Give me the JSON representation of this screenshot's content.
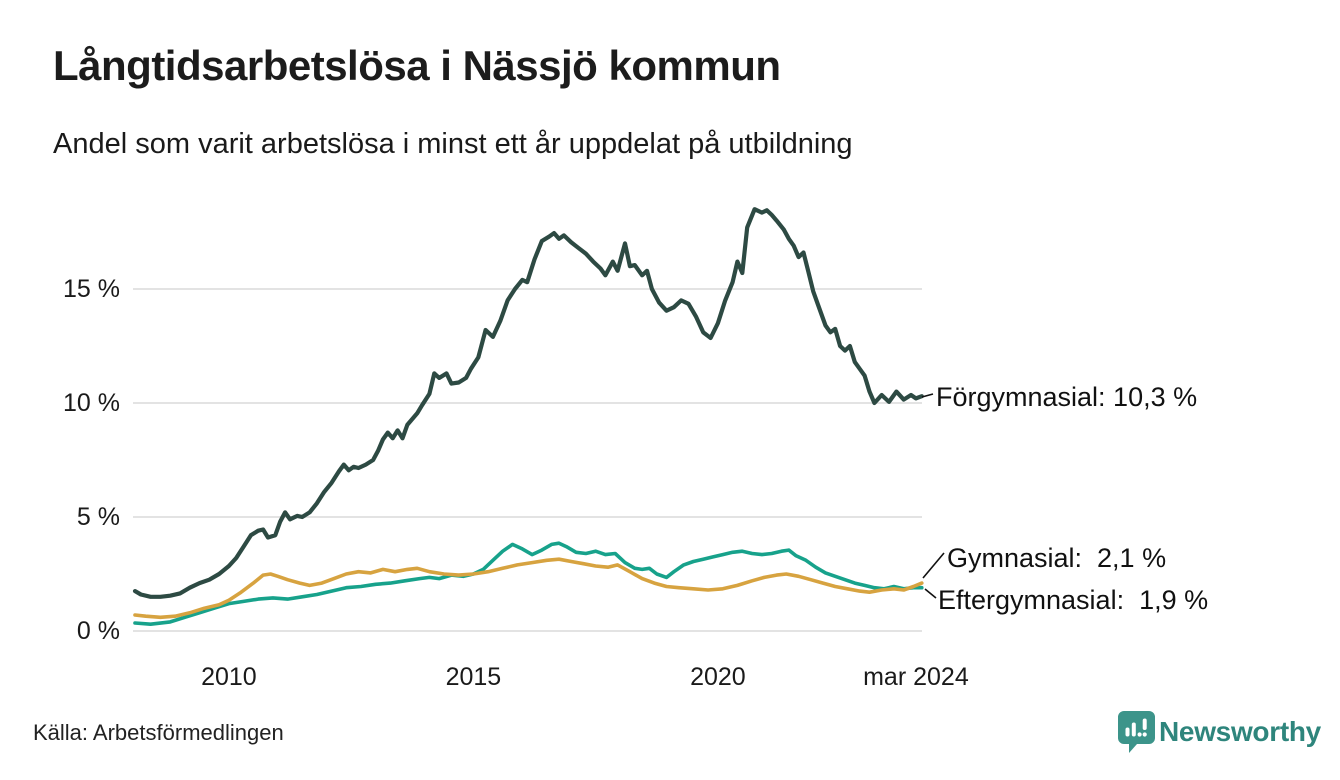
{
  "header": {
    "title": "Långtidsarbetslösa i Nässjö kommun",
    "subtitle": "Andel som varit arbetslösa i minst ett år uppdelat på utbildning"
  },
  "footer": {
    "source": "Källa: Arbetsförmedlingen",
    "brand": "Newsworthy"
  },
  "colors": {
    "forgymnasial": "#2d4a43",
    "gymnasial": "#d7a340",
    "eftergymnasial": "#17a28b",
    "grid": "#e3e3e3",
    "brand_teal": "#3c948a"
  },
  "chart_data": {
    "type": "line",
    "title": "Långtidsarbetslösa i Nässjö kommun",
    "subtitle": "Andel som varit arbetslösa i minst ett år uppdelat på utbildning",
    "unit": "%",
    "grid": "horizontal",
    "x_axis": {
      "range": [
        2008.08,
        2024.17
      ],
      "ticks": [
        {
          "label": "2010",
          "year": 2010
        },
        {
          "label": "2015",
          "year": 2015
        },
        {
          "label": "2020",
          "year": 2020
        },
        {
          "label": "mar 2024",
          "year": 2024.0
        }
      ]
    },
    "y_axis": {
      "range": [
        0,
        19
      ],
      "ticks": [
        {
          "label": "0 %",
          "value": 0
        },
        {
          "label": "5 %",
          "value": 5
        },
        {
          "label": "10 %",
          "value": 10
        },
        {
          "label": "15 %",
          "value": 15
        }
      ]
    },
    "series": [
      {
        "name": "Förgymnasial",
        "color": "#2d4a43",
        "last_value": 10.3,
        "annotation": "Förgymnasial: 10,3 %",
        "points": [
          [
            2008.08,
            1.75
          ],
          [
            2008.2,
            1.6
          ],
          [
            2008.4,
            1.5
          ],
          [
            2008.6,
            1.5
          ],
          [
            2008.8,
            1.55
          ],
          [
            2009.0,
            1.65
          ],
          [
            2009.2,
            1.9
          ],
          [
            2009.4,
            2.1
          ],
          [
            2009.6,
            2.25
          ],
          [
            2009.8,
            2.5
          ],
          [
            2010.0,
            2.85
          ],
          [
            2010.15,
            3.2
          ],
          [
            2010.3,
            3.7
          ],
          [
            2010.45,
            4.2
          ],
          [
            2010.6,
            4.4
          ],
          [
            2010.7,
            4.45
          ],
          [
            2010.8,
            4.1
          ],
          [
            2010.95,
            4.2
          ],
          [
            2011.05,
            4.8
          ],
          [
            2011.15,
            5.2
          ],
          [
            2011.25,
            4.9
          ],
          [
            2011.4,
            5.05
          ],
          [
            2011.5,
            5.0
          ],
          [
            2011.65,
            5.2
          ],
          [
            2011.8,
            5.6
          ],
          [
            2011.95,
            6.1
          ],
          [
            2012.1,
            6.5
          ],
          [
            2012.25,
            7.0
          ],
          [
            2012.35,
            7.3
          ],
          [
            2012.45,
            7.05
          ],
          [
            2012.55,
            7.2
          ],
          [
            2012.65,
            7.15
          ],
          [
            2012.8,
            7.3
          ],
          [
            2012.95,
            7.5
          ],
          [
            2013.05,
            7.9
          ],
          [
            2013.15,
            8.4
          ],
          [
            2013.25,
            8.7
          ],
          [
            2013.35,
            8.45
          ],
          [
            2013.45,
            8.8
          ],
          [
            2013.55,
            8.45
          ],
          [
            2013.65,
            9.05
          ],
          [
            2013.75,
            9.3
          ],
          [
            2013.85,
            9.55
          ],
          [
            2013.95,
            9.9
          ],
          [
            2014.1,
            10.4
          ],
          [
            2014.2,
            11.3
          ],
          [
            2014.3,
            11.1
          ],
          [
            2014.45,
            11.3
          ],
          [
            2014.55,
            10.85
          ],
          [
            2014.7,
            10.9
          ],
          [
            2014.85,
            11.1
          ],
          [
            2014.95,
            11.5
          ],
          [
            2015.1,
            12.0
          ],
          [
            2015.25,
            13.2
          ],
          [
            2015.4,
            12.9
          ],
          [
            2015.55,
            13.6
          ],
          [
            2015.7,
            14.5
          ],
          [
            2015.85,
            15.0
          ],
          [
            2016.0,
            15.4
          ],
          [
            2016.1,
            15.3
          ],
          [
            2016.25,
            16.3
          ],
          [
            2016.4,
            17.1
          ],
          [
            2016.55,
            17.3
          ],
          [
            2016.65,
            17.45
          ],
          [
            2016.75,
            17.2
          ],
          [
            2016.85,
            17.35
          ],
          [
            2017.0,
            17.05
          ],
          [
            2017.15,
            16.8
          ],
          [
            2017.3,
            16.55
          ],
          [
            2017.45,
            16.2
          ],
          [
            2017.6,
            15.9
          ],
          [
            2017.7,
            15.6
          ],
          [
            2017.85,
            16.2
          ],
          [
            2017.95,
            15.8
          ],
          [
            2018.1,
            17.0
          ],
          [
            2018.2,
            16.0
          ],
          [
            2018.3,
            16.05
          ],
          [
            2018.45,
            15.6
          ],
          [
            2018.55,
            15.8
          ],
          [
            2018.65,
            15.0
          ],
          [
            2018.8,
            14.4
          ],
          [
            2018.95,
            14.05
          ],
          [
            2019.1,
            14.2
          ],
          [
            2019.25,
            14.5
          ],
          [
            2019.4,
            14.35
          ],
          [
            2019.55,
            13.8
          ],
          [
            2019.7,
            13.1
          ],
          [
            2019.85,
            12.85
          ],
          [
            2020.0,
            13.5
          ],
          [
            2020.15,
            14.5
          ],
          [
            2020.3,
            15.3
          ],
          [
            2020.4,
            16.2
          ],
          [
            2020.5,
            15.7
          ],
          [
            2020.6,
            17.7
          ],
          [
            2020.75,
            18.5
          ],
          [
            2020.9,
            18.35
          ],
          [
            2021.0,
            18.45
          ],
          [
            2021.1,
            18.25
          ],
          [
            2021.2,
            18.0
          ],
          [
            2021.35,
            17.6
          ],
          [
            2021.45,
            17.2
          ],
          [
            2021.55,
            16.9
          ],
          [
            2021.65,
            16.4
          ],
          [
            2021.75,
            16.6
          ],
          [
            2021.85,
            15.75
          ],
          [
            2021.95,
            14.9
          ],
          [
            2022.05,
            14.3
          ],
          [
            2022.2,
            13.4
          ],
          [
            2022.3,
            13.1
          ],
          [
            2022.4,
            13.25
          ],
          [
            2022.5,
            12.5
          ],
          [
            2022.6,
            12.3
          ],
          [
            2022.7,
            12.5
          ],
          [
            2022.8,
            11.8
          ],
          [
            2022.9,
            11.5
          ],
          [
            2023.0,
            11.2
          ],
          [
            2023.1,
            10.5
          ],
          [
            2023.2,
            10.0
          ],
          [
            2023.35,
            10.35
          ],
          [
            2023.5,
            10.05
          ],
          [
            2023.65,
            10.5
          ],
          [
            2023.8,
            10.15
          ],
          [
            2023.95,
            10.35
          ],
          [
            2024.05,
            10.2
          ],
          [
            2024.17,
            10.3
          ]
        ]
      },
      {
        "name": "Gymnasial",
        "color": "#d7a340",
        "last_value": 2.1,
        "annotation": "Gymnasial:  2,1 %",
        "points": [
          [
            2008.08,
            0.7
          ],
          [
            2008.3,
            0.65
          ],
          [
            2008.6,
            0.6
          ],
          [
            2008.9,
            0.65
          ],
          [
            2009.2,
            0.8
          ],
          [
            2009.5,
            1.0
          ],
          [
            2009.8,
            1.15
          ],
          [
            2010.0,
            1.35
          ],
          [
            2010.25,
            1.7
          ],
          [
            2010.5,
            2.1
          ],
          [
            2010.7,
            2.45
          ],
          [
            2010.85,
            2.5
          ],
          [
            2011.0,
            2.4
          ],
          [
            2011.2,
            2.25
          ],
          [
            2011.45,
            2.1
          ],
          [
            2011.65,
            2.0
          ],
          [
            2011.9,
            2.1
          ],
          [
            2012.15,
            2.3
          ],
          [
            2012.4,
            2.5
          ],
          [
            2012.65,
            2.6
          ],
          [
            2012.9,
            2.55
          ],
          [
            2013.15,
            2.7
          ],
          [
            2013.4,
            2.6
          ],
          [
            2013.65,
            2.7
          ],
          [
            2013.85,
            2.75
          ],
          [
            2014.1,
            2.6
          ],
          [
            2014.4,
            2.5
          ],
          [
            2014.7,
            2.45
          ],
          [
            2015.0,
            2.5
          ],
          [
            2015.3,
            2.6
          ],
          [
            2015.6,
            2.75
          ],
          [
            2015.9,
            2.9
          ],
          [
            2016.2,
            3.0
          ],
          [
            2016.5,
            3.1
          ],
          [
            2016.75,
            3.15
          ],
          [
            2017.0,
            3.05
          ],
          [
            2017.25,
            2.95
          ],
          [
            2017.5,
            2.85
          ],
          [
            2017.75,
            2.8
          ],
          [
            2017.95,
            2.9
          ],
          [
            2018.2,
            2.6
          ],
          [
            2018.45,
            2.3
          ],
          [
            2018.7,
            2.1
          ],
          [
            2018.95,
            1.95
          ],
          [
            2019.2,
            1.9
          ],
          [
            2019.5,
            1.85
          ],
          [
            2019.8,
            1.8
          ],
          [
            2020.1,
            1.85
          ],
          [
            2020.4,
            2.0
          ],
          [
            2020.7,
            2.2
          ],
          [
            2020.95,
            2.35
          ],
          [
            2021.2,
            2.45
          ],
          [
            2021.4,
            2.5
          ],
          [
            2021.65,
            2.4
          ],
          [
            2021.9,
            2.25
          ],
          [
            2022.15,
            2.1
          ],
          [
            2022.4,
            1.95
          ],
          [
            2022.65,
            1.85
          ],
          [
            2022.9,
            1.75
          ],
          [
            2023.1,
            1.7
          ],
          [
            2023.35,
            1.8
          ],
          [
            2023.6,
            1.85
          ],
          [
            2023.8,
            1.8
          ],
          [
            2024.0,
            1.95
          ],
          [
            2024.17,
            2.1
          ]
        ]
      },
      {
        "name": "Eftergymnasial",
        "color": "#17a28b",
        "last_value": 1.9,
        "annotation": "Eftergymnasial:  1,9 %",
        "points": [
          [
            2008.08,
            0.35
          ],
          [
            2008.4,
            0.3
          ],
          [
            2008.8,
            0.4
          ],
          [
            2009.1,
            0.6
          ],
          [
            2009.4,
            0.8
          ],
          [
            2009.7,
            1.0
          ],
          [
            2010.0,
            1.2
          ],
          [
            2010.3,
            1.3
          ],
          [
            2010.6,
            1.4
          ],
          [
            2010.9,
            1.45
          ],
          [
            2011.2,
            1.4
          ],
          [
            2011.5,
            1.5
          ],
          [
            2011.8,
            1.6
          ],
          [
            2012.1,
            1.75
          ],
          [
            2012.4,
            1.9
          ],
          [
            2012.7,
            1.95
          ],
          [
            2013.0,
            2.05
          ],
          [
            2013.3,
            2.1
          ],
          [
            2013.6,
            2.2
          ],
          [
            2013.9,
            2.3
          ],
          [
            2014.1,
            2.35
          ],
          [
            2014.3,
            2.3
          ],
          [
            2014.55,
            2.45
          ],
          [
            2014.8,
            2.4
          ],
          [
            2015.0,
            2.5
          ],
          [
            2015.2,
            2.7
          ],
          [
            2015.4,
            3.1
          ],
          [
            2015.6,
            3.5
          ],
          [
            2015.8,
            3.8
          ],
          [
            2016.0,
            3.6
          ],
          [
            2016.2,
            3.35
          ],
          [
            2016.4,
            3.55
          ],
          [
            2016.6,
            3.8
          ],
          [
            2016.75,
            3.85
          ],
          [
            2016.9,
            3.7
          ],
          [
            2017.1,
            3.45
          ],
          [
            2017.3,
            3.4
          ],
          [
            2017.5,
            3.5
          ],
          [
            2017.7,
            3.35
          ],
          [
            2017.9,
            3.4
          ],
          [
            2018.1,
            3.0
          ],
          [
            2018.3,
            2.75
          ],
          [
            2018.45,
            2.7
          ],
          [
            2018.6,
            2.75
          ],
          [
            2018.75,
            2.5
          ],
          [
            2018.95,
            2.35
          ],
          [
            2019.1,
            2.6
          ],
          [
            2019.3,
            2.9
          ],
          [
            2019.5,
            3.05
          ],
          [
            2019.7,
            3.15
          ],
          [
            2019.9,
            3.25
          ],
          [
            2020.1,
            3.35
          ],
          [
            2020.3,
            3.45
          ],
          [
            2020.5,
            3.5
          ],
          [
            2020.7,
            3.4
          ],
          [
            2020.9,
            3.35
          ],
          [
            2021.1,
            3.4
          ],
          [
            2021.3,
            3.5
          ],
          [
            2021.45,
            3.55
          ],
          [
            2021.6,
            3.3
          ],
          [
            2021.8,
            3.1
          ],
          [
            2022.0,
            2.8
          ],
          [
            2022.2,
            2.55
          ],
          [
            2022.4,
            2.4
          ],
          [
            2022.6,
            2.25
          ],
          [
            2022.8,
            2.1
          ],
          [
            2023.0,
            2.0
          ],
          [
            2023.2,
            1.9
          ],
          [
            2023.4,
            1.85
          ],
          [
            2023.6,
            1.95
          ],
          [
            2023.8,
            1.85
          ],
          [
            2024.0,
            1.9
          ],
          [
            2024.17,
            1.9
          ]
        ]
      }
    ]
  }
}
